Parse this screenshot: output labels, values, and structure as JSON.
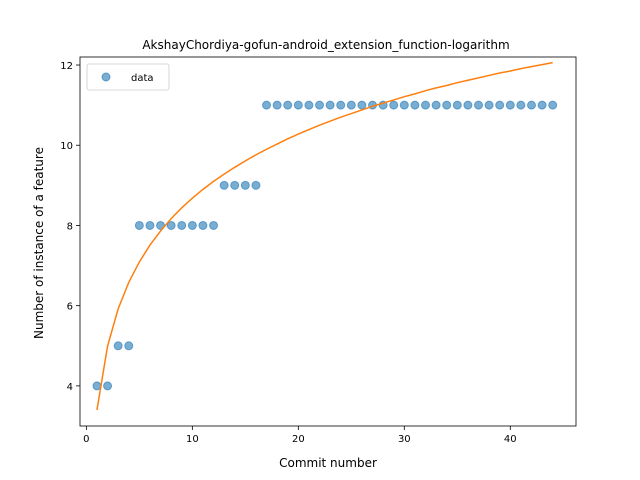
{
  "chart_data": {
    "type": "scatter",
    "title": "AkshayChordiya-gofun-android_extension_function-logarithm",
    "xlabel": "Commit number",
    "ylabel": "Number of instance of a feature",
    "xlim": [
      -0.6,
      46.2
    ],
    "ylim": [
      3.0,
      12.2
    ],
    "xticks": [
      0,
      10,
      20,
      30,
      40
    ],
    "yticks": [
      4,
      6,
      8,
      10,
      12
    ],
    "grid": false,
    "legend": {
      "position": "top-left",
      "entries": [
        "data"
      ]
    },
    "series": [
      {
        "name": "data",
        "kind": "scatter",
        "color": "#1f77b4",
        "x": [
          1,
          2,
          3,
          4,
          5,
          6,
          7,
          8,
          9,
          10,
          11,
          12,
          13,
          14,
          15,
          16,
          17,
          18,
          19,
          20,
          21,
          22,
          23,
          24,
          25,
          26,
          27,
          28,
          29,
          30,
          31,
          32,
          33,
          34,
          35,
          36,
          37,
          38,
          39,
          40,
          41,
          42,
          43,
          44
        ],
        "y": [
          4,
          4,
          5,
          5,
          8,
          8,
          8,
          8,
          8,
          8,
          8,
          8,
          9,
          9,
          9,
          9,
          11,
          11,
          11,
          11,
          11,
          11,
          11,
          11,
          11,
          11,
          11,
          11,
          11,
          11,
          11,
          11,
          11,
          11,
          11,
          11,
          11,
          11,
          11,
          11,
          11,
          11,
          11,
          11
        ]
      },
      {
        "kind": "line",
        "color": "#ff7f0e",
        "x": [
          1,
          2,
          3,
          4,
          5,
          6,
          7,
          8,
          9,
          10,
          11,
          12,
          13,
          14,
          15,
          16,
          17,
          18,
          19,
          20,
          21,
          22,
          23,
          24,
          25,
          26,
          27,
          28,
          29,
          30,
          31,
          32,
          33,
          34,
          35,
          36,
          37,
          38,
          39,
          40,
          41,
          42,
          43,
          44
        ],
        "y": [
          3.4,
          4.99,
          5.92,
          6.58,
          7.09,
          7.51,
          7.86,
          8.17,
          8.44,
          8.68,
          8.9,
          9.1,
          9.28,
          9.45,
          9.61,
          9.76,
          9.9,
          10.03,
          10.16,
          10.28,
          10.39,
          10.5,
          10.6,
          10.7,
          10.79,
          10.88,
          10.97,
          11.05,
          11.13,
          11.21,
          11.28,
          11.36,
          11.43,
          11.49,
          11.56,
          11.62,
          11.68,
          11.74,
          11.8,
          11.85,
          11.91,
          11.96,
          12.01,
          12.06
        ]
      }
    ]
  }
}
